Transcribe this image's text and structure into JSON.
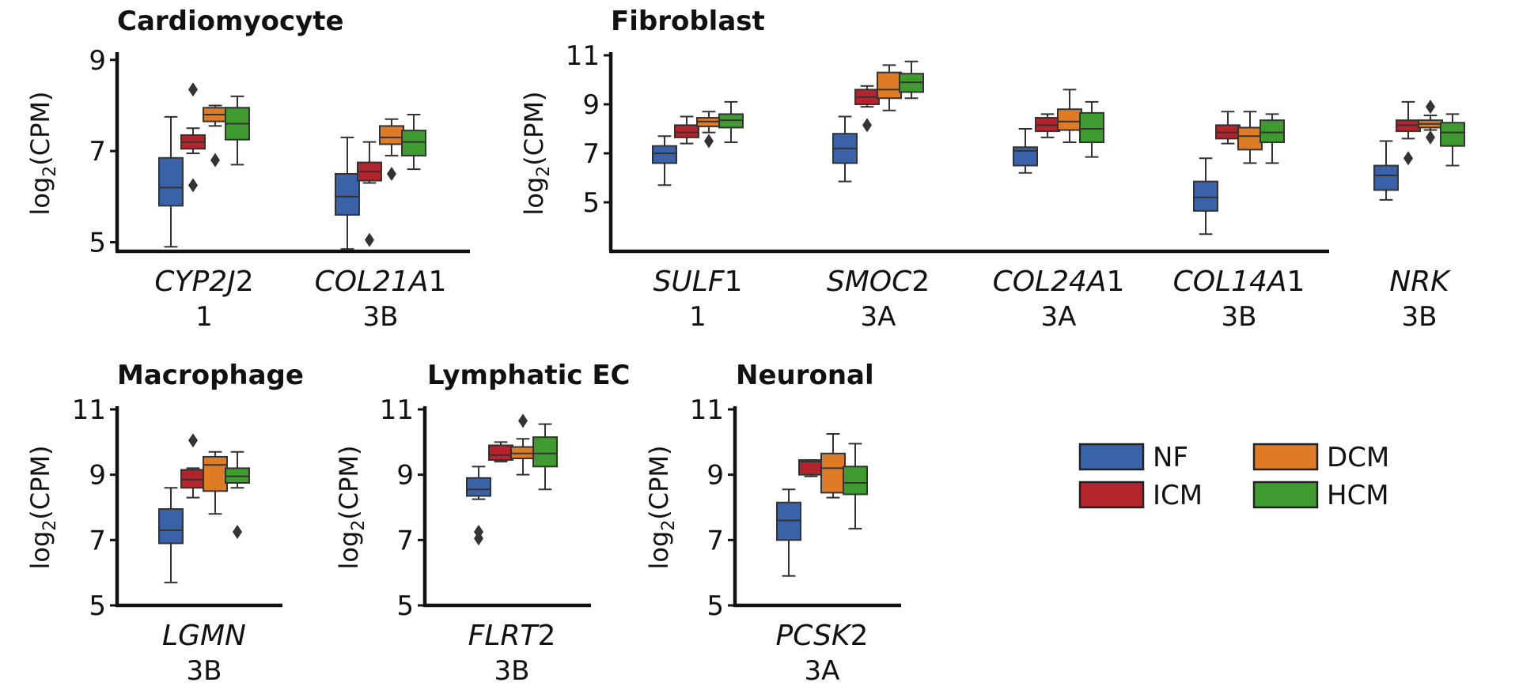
{
  "colors": {
    "NF": "#3a62a8",
    "ICM": "#b5242c",
    "DCM": "#e07b25",
    "HCM": "#3f9b30",
    "axis": "#111111"
  },
  "legend": {
    "items": [
      {
        "name": "NF",
        "color": "#3a62a8"
      },
      {
        "name": "DCM",
        "color": "#e07b25"
      },
      {
        "name": "ICM",
        "color": "#b5242c"
      },
      {
        "name": "HCM",
        "color": "#3f9b30"
      }
    ]
  },
  "chart_data": [
    {
      "type": "box",
      "title": "Cardiomyocyte",
      "ylabel": "log2(CPM)",
      "ylim": [
        4.8,
        9.1
      ],
      "yticks": [
        5,
        7,
        9
      ],
      "groups": [
        "NF",
        "ICM",
        "DCM",
        "HCM"
      ],
      "categories": [
        {
          "gene_italic": "CYP2J",
          "gene_num": "2",
          "label2": "1",
          "boxes": [
            {
              "group": "NF",
              "wlo": 4.9,
              "q1": 5.8,
              "med": 6.2,
              "q3": 6.85,
              "whi": 7.75,
              "outliers": []
            },
            {
              "group": "ICM",
              "wlo": 6.95,
              "q1": 7.05,
              "med": 7.2,
              "q3": 7.35,
              "whi": 7.5,
              "outliers": [
                8.35,
                6.25
              ]
            },
            {
              "group": "DCM",
              "wlo": 7.55,
              "q1": 7.65,
              "med": 7.8,
              "q3": 7.95,
              "whi": 8.0,
              "outliers": [
                6.8
              ]
            },
            {
              "group": "HCM",
              "wlo": 6.7,
              "q1": 7.25,
              "med": 7.6,
              "q3": 7.95,
              "whi": 8.2,
              "outliers": []
            }
          ]
        },
        {
          "gene_italic": "COL21A",
          "gene_num": "1",
          "label2": "3B",
          "boxes": [
            {
              "group": "NF",
              "wlo": 4.85,
              "q1": 5.6,
              "med": 6.0,
              "q3": 6.5,
              "whi": 7.3,
              "outliers": []
            },
            {
              "group": "ICM",
              "wlo": 6.3,
              "q1": 6.35,
              "med": 6.55,
              "q3": 6.75,
              "whi": 7.2,
              "outliers": [
                5.05
              ]
            },
            {
              "group": "DCM",
              "wlo": 6.9,
              "q1": 7.15,
              "med": 7.3,
              "q3": 7.55,
              "whi": 7.7,
              "outliers": [
                6.5
              ]
            },
            {
              "group": "HCM",
              "wlo": 6.6,
              "q1": 6.9,
              "med": 7.2,
              "q3": 7.45,
              "whi": 7.8,
              "outliers": []
            }
          ]
        }
      ]
    },
    {
      "type": "box",
      "title": "Fibroblast",
      "ylabel": "log2(CPM)",
      "ylim": [
        3.0,
        11.0
      ],
      "yticks": [
        5,
        7,
        9,
        11
      ],
      "groups": [
        "NF",
        "ICM",
        "DCM",
        "HCM"
      ],
      "categories": [
        {
          "gene_italic": "SULF",
          "gene_num": "1",
          "label2": "1",
          "boxes": [
            {
              "group": "NF",
              "wlo": 5.7,
              "q1": 6.6,
              "med": 7.0,
              "q3": 7.3,
              "whi": 7.7,
              "outliers": []
            },
            {
              "group": "ICM",
              "wlo": 7.4,
              "q1": 7.65,
              "med": 7.85,
              "q3": 8.15,
              "whi": 8.5,
              "outliers": []
            },
            {
              "group": "DCM",
              "wlo": 7.85,
              "q1": 8.1,
              "med": 8.3,
              "q3": 8.45,
              "whi": 8.7,
              "outliers": [
                7.5
              ]
            },
            {
              "group": "HCM",
              "wlo": 7.45,
              "q1": 8.05,
              "med": 8.35,
              "q3": 8.6,
              "whi": 9.1,
              "outliers": []
            }
          ]
        },
        {
          "gene_italic": "SMOC",
          "gene_num": "2",
          "label2": "3A",
          "boxes": [
            {
              "group": "NF",
              "wlo": 5.85,
              "q1": 6.6,
              "med": 7.2,
              "q3": 7.8,
              "whi": 8.5,
              "outliers": []
            },
            {
              "group": "ICM",
              "wlo": 8.9,
              "q1": 9.0,
              "med": 9.3,
              "q3": 9.6,
              "whi": 9.75,
              "outliers": [
                8.15
              ]
            },
            {
              "group": "DCM",
              "wlo": 8.75,
              "q1": 9.25,
              "med": 9.6,
              "q3": 10.3,
              "whi": 10.6,
              "outliers": []
            },
            {
              "group": "HCM",
              "wlo": 9.25,
              "q1": 9.5,
              "med": 9.9,
              "q3": 10.25,
              "whi": 10.75,
              "outliers": []
            }
          ]
        },
        {
          "gene_italic": "COL24A",
          "gene_num": "1",
          "label2": "3A",
          "boxes": [
            {
              "group": "NF",
              "wlo": 6.2,
              "q1": 6.5,
              "med": 7.1,
              "q3": 7.25,
              "whi": 8.0,
              "outliers": []
            },
            {
              "group": "ICM",
              "wlo": 7.65,
              "q1": 7.9,
              "med": 8.15,
              "q3": 8.45,
              "whi": 8.6,
              "outliers": []
            },
            {
              "group": "DCM",
              "wlo": 7.45,
              "q1": 7.95,
              "med": 8.3,
              "q3": 8.8,
              "whi": 9.6,
              "outliers": []
            },
            {
              "group": "HCM",
              "wlo": 6.85,
              "q1": 7.45,
              "med": 8.0,
              "q3": 8.65,
              "whi": 9.1,
              "outliers": []
            }
          ]
        },
        {
          "gene_italic": "COL14A",
          "gene_num": "1",
          "label2": "3B",
          "boxes": [
            {
              "group": "NF",
              "wlo": 3.7,
              "q1": 4.65,
              "med": 5.2,
              "q3": 5.85,
              "whi": 6.8,
              "outliers": []
            },
            {
              "group": "ICM",
              "wlo": 7.4,
              "q1": 7.6,
              "med": 7.85,
              "q3": 8.15,
              "whi": 8.7,
              "outliers": []
            },
            {
              "group": "DCM",
              "wlo": 6.6,
              "q1": 7.15,
              "med": 7.7,
              "q3": 8.05,
              "whi": 8.7,
              "outliers": []
            },
            {
              "group": "HCM",
              "wlo": 6.6,
              "q1": 7.45,
              "med": 7.85,
              "q3": 8.35,
              "whi": 8.6,
              "outliers": []
            }
          ]
        },
        {
          "gene_italic": "NRK",
          "gene_num": "",
          "label2": "3B",
          "boxes": [
            {
              "group": "NF",
              "wlo": 5.1,
              "q1": 5.5,
              "med": 6.1,
              "q3": 6.5,
              "whi": 7.5,
              "outliers": []
            },
            {
              "group": "ICM",
              "wlo": 7.6,
              "q1": 7.9,
              "med": 8.15,
              "q3": 8.35,
              "whi": 9.1,
              "outliers": [
                6.8
              ]
            },
            {
              "group": "DCM",
              "wlo": 7.95,
              "q1": 8.05,
              "med": 8.2,
              "q3": 8.35,
              "whi": 8.55,
              "outliers": [
                8.9,
                7.65
              ]
            },
            {
              "group": "HCM",
              "wlo": 6.5,
              "q1": 7.3,
              "med": 7.85,
              "q3": 8.25,
              "whi": 8.6,
              "outliers": []
            }
          ]
        }
      ]
    },
    {
      "type": "box",
      "title": "Macrophage",
      "ylabel": "log2(CPM)",
      "ylim": [
        5,
        11
      ],
      "yticks": [
        5,
        7,
        9,
        11
      ],
      "groups": [
        "NF",
        "ICM",
        "DCM",
        "HCM"
      ],
      "categories": [
        {
          "gene_italic": "LGMN",
          "gene_num": "",
          "label2": "3B",
          "boxes": [
            {
              "group": "NF",
              "wlo": 5.7,
              "q1": 6.9,
              "med": 7.3,
              "q3": 7.95,
              "whi": 8.6,
              "outliers": []
            },
            {
              "group": "ICM",
              "wlo": 8.3,
              "q1": 8.6,
              "med": 8.85,
              "q3": 9.15,
              "whi": 9.2,
              "outliers": [
                10.05
              ]
            },
            {
              "group": "DCM",
              "wlo": 7.8,
              "q1": 8.5,
              "med": 9.3,
              "q3": 9.55,
              "whi": 9.7,
              "outliers": []
            },
            {
              "group": "HCM",
              "wlo": 8.6,
              "q1": 8.75,
              "med": 8.95,
              "q3": 9.2,
              "whi": 9.7,
              "outliers": [
                7.25
              ]
            }
          ]
        }
      ]
    },
    {
      "type": "box",
      "title": "Lymphatic EC",
      "ylabel": "log2(CPM)",
      "ylim": [
        5,
        11
      ],
      "yticks": [
        5,
        7,
        9,
        11
      ],
      "groups": [
        "NF",
        "ICM",
        "DCM",
        "HCM"
      ],
      "categories": [
        {
          "gene_italic": "FLRT",
          "gene_num": "2",
          "label2": "3B",
          "boxes": [
            {
              "group": "NF",
              "wlo": 8.25,
              "q1": 8.35,
              "med": 8.55,
              "q3": 8.9,
              "whi": 9.25,
              "outliers": [
                7.25,
                7.05
              ]
            },
            {
              "group": "ICM",
              "wlo": 9.4,
              "q1": 9.45,
              "med": 9.6,
              "q3": 9.9,
              "whi": 10.0,
              "outliers": []
            },
            {
              "group": "DCM",
              "wlo": 9.0,
              "q1": 9.5,
              "med": 9.65,
              "q3": 9.85,
              "whi": 10.1,
              "outliers": [
                10.65
              ]
            },
            {
              "group": "HCM",
              "wlo": 8.55,
              "q1": 9.25,
              "med": 9.65,
              "q3": 10.15,
              "whi": 10.55,
              "outliers": []
            }
          ]
        }
      ]
    },
    {
      "type": "box",
      "title": "Neuronal",
      "ylabel": "log2(CPM)",
      "ylim": [
        5,
        11
      ],
      "yticks": [
        5,
        7,
        9,
        11
      ],
      "groups": [
        "NF",
        "ICM",
        "DCM",
        "HCM"
      ],
      "categories": [
        {
          "gene_italic": "PCSK",
          "gene_num": "2",
          "label2": "3A",
          "boxes": [
            {
              "group": "NF",
              "wlo": 5.9,
              "q1": 7.0,
              "med": 7.6,
              "q3": 8.15,
              "whi": 8.55,
              "outliers": []
            },
            {
              "group": "ICM",
              "wlo": 8.95,
              "q1": 9.0,
              "med": 9.4,
              "q3": 9.45,
              "whi": 9.45,
              "outliers": []
            },
            {
              "group": "DCM",
              "wlo": 8.3,
              "q1": 8.45,
              "med": 9.2,
              "q3": 9.65,
              "whi": 10.25,
              "outliers": []
            },
            {
              "group": "HCM",
              "wlo": 7.35,
              "q1": 8.4,
              "med": 8.75,
              "q3": 9.25,
              "whi": 9.95,
              "outliers": []
            }
          ]
        }
      ]
    }
  ]
}
